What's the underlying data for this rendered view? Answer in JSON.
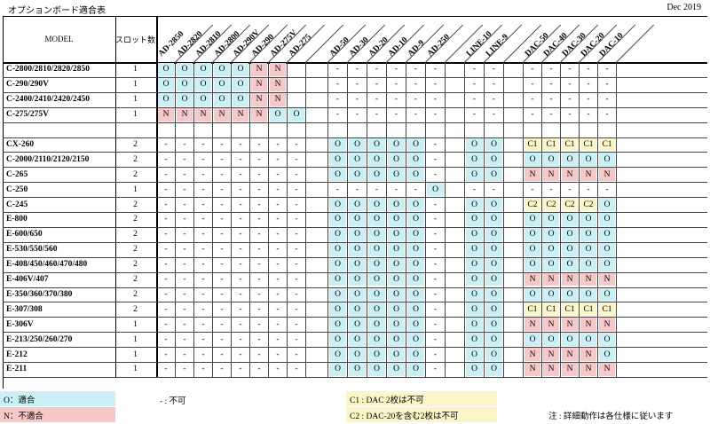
{
  "title": "オプションボード適合表",
  "date": "Dec 2019",
  "header": {
    "model": "MODEL",
    "slots": "スロット数"
  },
  "columns": [
    "AD-2850",
    "AD-2820",
    "AD-2810",
    "AD-2800",
    "AD-290V",
    "AD-290",
    "AD-275V",
    "AD-275",
    "",
    "AD-50",
    "AD-30",
    "AD-20",
    "AD-10",
    "AD-9",
    "AD-250",
    "",
    "LINE-10",
    "LINE-9",
    "",
    "DAC-50",
    "DAC-40",
    "DAC-30",
    "DAC-20",
    "DAC-10"
  ],
  "rows": [
    {
      "model": "C-2800/2810/2820/2850",
      "slots": "1",
      "v": [
        "O",
        "O",
        "O",
        "O",
        "O",
        "N",
        "N",
        "",
        "",
        "-",
        "-",
        "-",
        "-",
        "-",
        "-",
        "",
        "-",
        "-",
        "",
        "-",
        "-",
        "-",
        "-",
        "-"
      ]
    },
    {
      "model": "C-290/290V",
      "slots": "1",
      "v": [
        "O",
        "O",
        "O",
        "O",
        "O",
        "N",
        "N",
        "",
        "",
        "-",
        "-",
        "-",
        "-",
        "-",
        "-",
        "",
        "-",
        "-",
        "",
        "-",
        "-",
        "-",
        "-",
        "-"
      ]
    },
    {
      "model": "C-2400/2410/2420/2450",
      "slots": "1",
      "v": [
        "O",
        "O",
        "O",
        "O",
        "O",
        "N",
        "N",
        "",
        "",
        "-",
        "-",
        "-",
        "-",
        "-",
        "-",
        "",
        "-",
        "-",
        "",
        "-",
        "-",
        "-",
        "-",
        "-"
      ]
    },
    {
      "model": "C-275/275V",
      "slots": "1",
      "v": [
        "N",
        "N",
        "N",
        "N",
        "N",
        "N",
        "O",
        "O",
        "",
        "-",
        "-",
        "-",
        "-",
        "-",
        "-",
        "",
        "-",
        "-",
        "",
        "-",
        "-",
        "-",
        "-",
        "-"
      ]
    },
    {
      "model": "",
      "slots": "",
      "v": [
        "",
        "",
        "",
        "",
        "",
        "",
        "",
        "",
        "",
        "",
        "",
        "",
        "",
        "",
        "",
        "",
        "",
        "",
        "",
        "",
        "",
        "",
        "",
        ""
      ]
    },
    {
      "model": "CX-260",
      "slots": "2",
      "v": [
        "-",
        "-",
        "-",
        "-",
        "-",
        "-",
        "-",
        "-",
        "",
        "O",
        "O",
        "O",
        "O",
        "O",
        "-",
        "",
        "O",
        "O",
        "",
        "C1",
        "C1",
        "C1",
        "C1",
        "C1"
      ]
    },
    {
      "model": "C-2000/2110/2120/2150",
      "slots": "2",
      "v": [
        "-",
        "-",
        "-",
        "-",
        "-",
        "-",
        "-",
        "-",
        "",
        "O",
        "O",
        "O",
        "O",
        "O",
        "-",
        "",
        "O",
        "O",
        "",
        "O",
        "O",
        "O",
        "O",
        "O"
      ]
    },
    {
      "model": "C-265",
      "slots": "2",
      "v": [
        "-",
        "-",
        "-",
        "-",
        "-",
        "-",
        "-",
        "-",
        "",
        "O",
        "O",
        "O",
        "O",
        "O",
        "-",
        "",
        "O",
        "O",
        "",
        "N",
        "N",
        "N",
        "N",
        "N"
      ]
    },
    {
      "model": "C-250",
      "slots": "1",
      "v": [
        "-",
        "-",
        "-",
        "-",
        "-",
        "-",
        "-",
        "-",
        "",
        "-",
        "-",
        "-",
        "-",
        "-",
        "O",
        "",
        "-",
        "-",
        "",
        "-",
        "-",
        "-",
        "-",
        "-"
      ]
    },
    {
      "model": "C-245",
      "slots": "2",
      "v": [
        "-",
        "-",
        "-",
        "-",
        "-",
        "-",
        "-",
        "-",
        "",
        "O",
        "O",
        "O",
        "O",
        "O",
        "-",
        "",
        "O",
        "O",
        "",
        "C2",
        "C2",
        "C2",
        "C2",
        "O"
      ]
    },
    {
      "model": "E-800",
      "slots": "2",
      "v": [
        "-",
        "-",
        "-",
        "-",
        "-",
        "-",
        "-",
        "-",
        "",
        "O",
        "O",
        "O",
        "O",
        "O",
        "-",
        "",
        "O",
        "O",
        "",
        "O",
        "O",
        "O",
        "O",
        "O"
      ]
    },
    {
      "model": "E-600/650",
      "slots": "2",
      "v": [
        "-",
        "-",
        "-",
        "-",
        "-",
        "-",
        "-",
        "-",
        "",
        "O",
        "O",
        "O",
        "O",
        "O",
        "-",
        "",
        "O",
        "O",
        "",
        "O",
        "O",
        "O",
        "O",
        "O"
      ]
    },
    {
      "model": "E-530/550/560",
      "slots": "2",
      "v": [
        "-",
        "-",
        "-",
        "-",
        "-",
        "-",
        "-",
        "-",
        "",
        "O",
        "O",
        "O",
        "O",
        "O",
        "-",
        "",
        "O",
        "O",
        "",
        "O",
        "O",
        "O",
        "O",
        "O"
      ]
    },
    {
      "model": "E-408/450/460/470/480",
      "slots": "2",
      "v": [
        "-",
        "-",
        "-",
        "-",
        "-",
        "-",
        "-",
        "-",
        "",
        "O",
        "O",
        "O",
        "O",
        "O",
        "-",
        "",
        "O",
        "O",
        "",
        "O",
        "O",
        "O",
        "O",
        "O"
      ]
    },
    {
      "model": "E-406V/407",
      "slots": "2",
      "v": [
        "-",
        "-",
        "-",
        "-",
        "-",
        "-",
        "-",
        "-",
        "",
        "O",
        "O",
        "O",
        "O",
        "O",
        "-",
        "",
        "O",
        "O",
        "",
        "N",
        "N",
        "N",
        "N",
        "N"
      ]
    },
    {
      "model": "E-350/360/370/380",
      "slots": "2",
      "v": [
        "-",
        "-",
        "-",
        "-",
        "-",
        "-",
        "-",
        "-",
        "",
        "O",
        "O",
        "O",
        "O",
        "O",
        "-",
        "",
        "O",
        "O",
        "",
        "O",
        "O",
        "O",
        "O",
        "O"
      ]
    },
    {
      "model": "E-307/308",
      "slots": "2",
      "v": [
        "-",
        "-",
        "-",
        "-",
        "-",
        "-",
        "-",
        "-",
        "",
        "O",
        "O",
        "O",
        "O",
        "O",
        "-",
        "",
        "O",
        "O",
        "",
        "C1",
        "C1",
        "C1",
        "C1",
        "C1"
      ]
    },
    {
      "model": "E-306V",
      "slots": "1",
      "v": [
        "-",
        "-",
        "-",
        "-",
        "-",
        "-",
        "-",
        "-",
        "",
        "O",
        "O",
        "O",
        "O",
        "O",
        "-",
        "",
        "O",
        "O",
        "",
        "N",
        "N",
        "N",
        "N",
        "N"
      ]
    },
    {
      "model": "E-213/250/260/270",
      "slots": "1",
      "v": [
        "-",
        "-",
        "-",
        "-",
        "-",
        "-",
        "-",
        "-",
        "",
        "O",
        "O",
        "O",
        "O",
        "O",
        "-",
        "",
        "O",
        "O",
        "",
        "O",
        "O",
        "O",
        "O",
        "O"
      ]
    },
    {
      "model": "E-212",
      "slots": "1",
      "v": [
        "-",
        "-",
        "-",
        "-",
        "-",
        "-",
        "-",
        "-",
        "",
        "O",
        "O",
        "O",
        "O",
        "O",
        "-",
        "",
        "O",
        "O",
        "",
        "N",
        "N",
        "N",
        "N",
        "O"
      ]
    },
    {
      "model": "E-211",
      "slots": "1",
      "v": [
        "-",
        "-",
        "-",
        "-",
        "-",
        "-",
        "-",
        "-",
        "",
        "O",
        "O",
        "O",
        "O",
        "O",
        "-",
        "",
        "O",
        "O",
        "",
        "N",
        "N",
        "N",
        "N",
        "N"
      ]
    }
  ],
  "colors": {
    "O": "#c9f1f5",
    "N": "#f6c8c8",
    "C": "#fbf6c8"
  },
  "legend": {
    "ok": "O：適合",
    "ng": "N：不適合",
    "na": "- : 不可",
    "c1": "C1 : DAC  2枚は不可",
    "c2": "C2 : DAC-20を含む2枚は不可",
    "note": "注 : 詳細動作は各仕様に従います"
  }
}
